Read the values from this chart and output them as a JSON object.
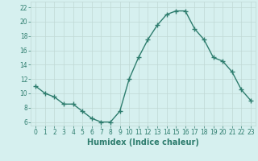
{
  "x": [
    0,
    1,
    2,
    3,
    4,
    5,
    6,
    7,
    8,
    9,
    10,
    11,
    12,
    13,
    14,
    15,
    16,
    17,
    18,
    19,
    20,
    21,
    22,
    23
  ],
  "y": [
    11,
    10,
    9.5,
    8.5,
    8.5,
    7.5,
    6.5,
    6,
    6,
    7.5,
    12,
    15,
    17.5,
    19.5,
    21,
    21.5,
    21.5,
    19,
    17.5,
    15,
    14.5,
    13,
    10.5,
    9
  ],
  "line_color": "#2e7d6e",
  "marker": "+",
  "marker_size": 4,
  "bg_color": "#d6f0ef",
  "grid_color": "#c0d8d5",
  "xlabel": "Humidex (Indice chaleur)",
  "xlim": [
    -0.5,
    23.5
  ],
  "ylim": [
    5.5,
    22.8
  ],
  "yticks": [
    6,
    8,
    10,
    12,
    14,
    16,
    18,
    20,
    22
  ],
  "xtick_labels": [
    "0",
    "1",
    "2",
    "3",
    "4",
    "5",
    "6",
    "7",
    "8",
    "9",
    "10",
    "11",
    "12",
    "13",
    "14",
    "15",
    "16",
    "17",
    "18",
    "19",
    "20",
    "21",
    "22",
    "23"
  ],
  "tick_color": "#2e7d6e",
  "tick_fontsize": 5.5,
  "xlabel_fontsize": 7,
  "lw": 1.0
}
